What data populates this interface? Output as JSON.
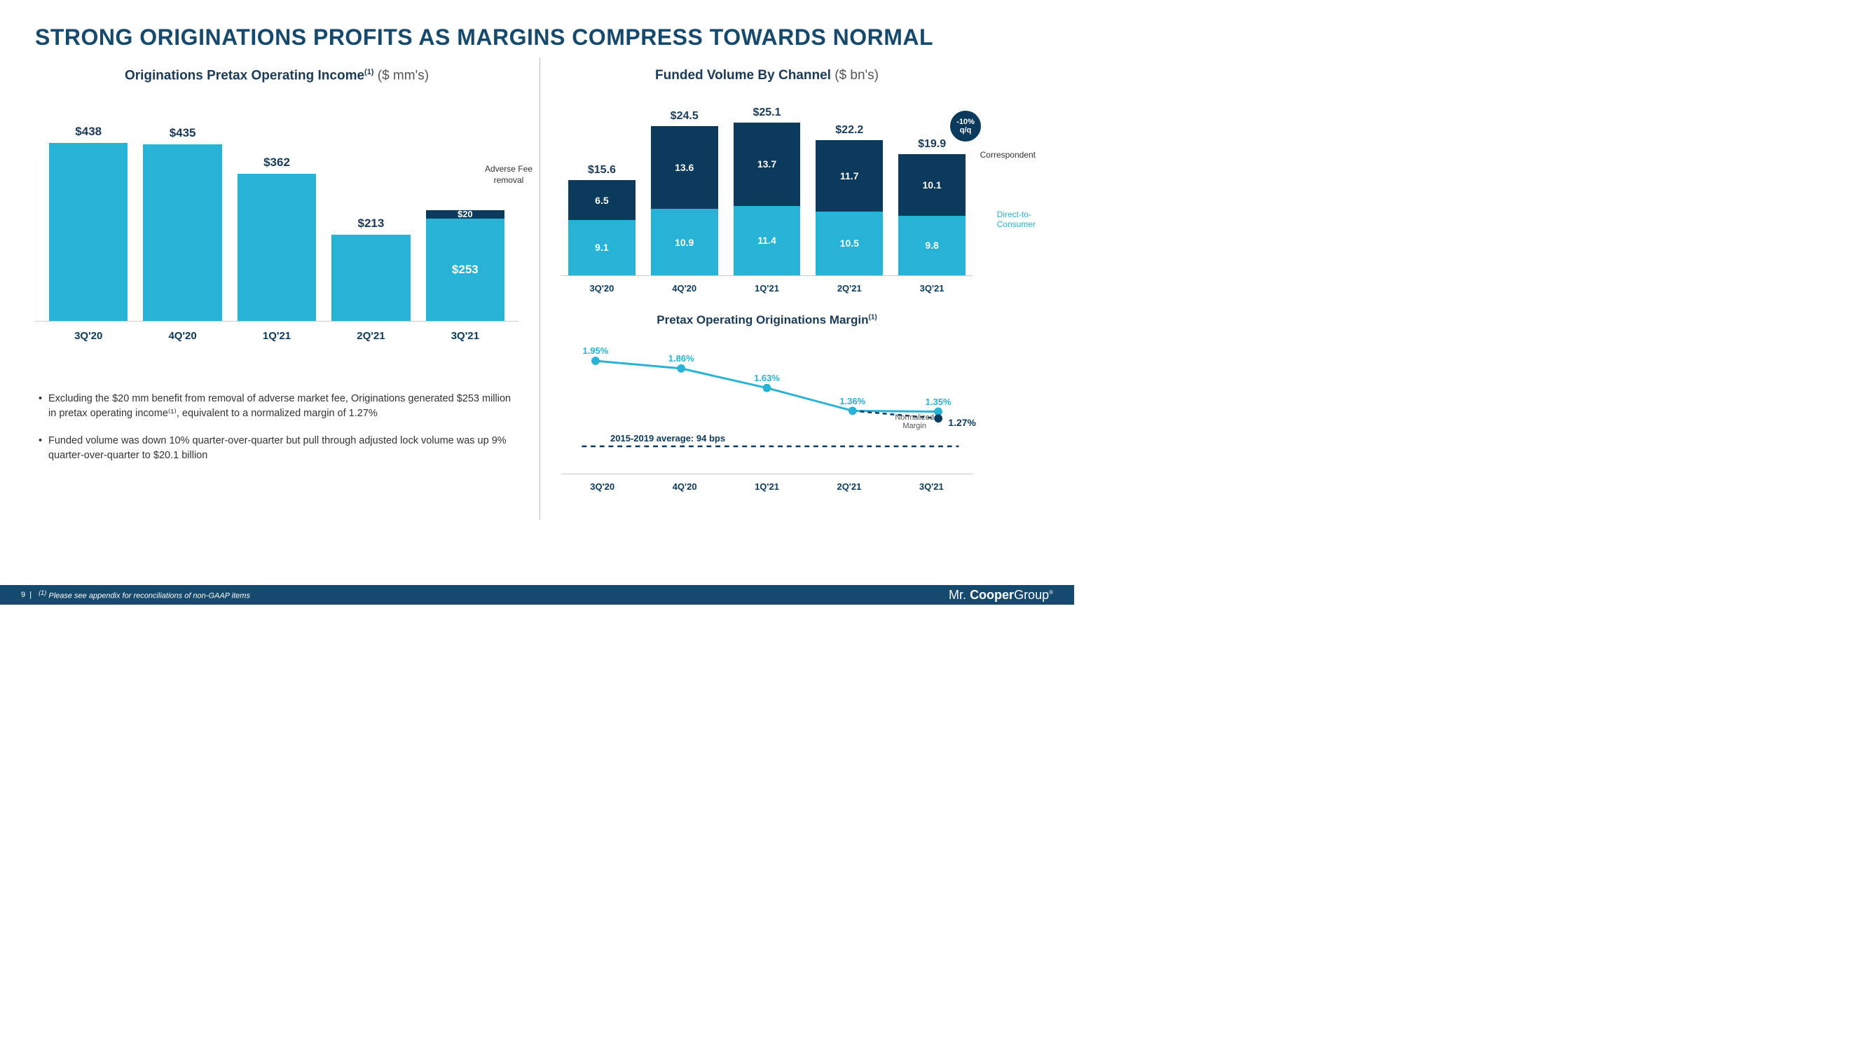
{
  "title": {
    "text": "STRONG ORIGINATIONS PROFITS AS MARGINS COMPRESS TOWARDS NORMAL",
    "color": "#16496e",
    "fontsize": 32
  },
  "periods": [
    "3Q'20",
    "4Q'20",
    "1Q'21",
    "2Q'21",
    "3Q'21"
  ],
  "chart1": {
    "title_main": "Originations Pretax Operating Income",
    "title_sup": "(1)",
    "title_unit": " ($ mm's)",
    "type": "bar",
    "max": 500,
    "bar_color": "#27b3d6",
    "categories": [
      "3Q'20",
      "4Q'20",
      "1Q'21",
      "2Q'21",
      "3Q'21"
    ],
    "values": [
      438,
      435,
      362,
      213,
      273
    ],
    "labels": [
      "$438",
      "$435",
      "$362",
      "$213",
      ""
    ],
    "last_top_seg": 20,
    "last_top_label": "$20",
    "last_bot_seg": 253,
    "last_bot_label": "$253",
    "adverse_line1": "Adverse Fee",
    "adverse_line2": "removal"
  },
  "bullets": [
    "Excluding the $20 mm benefit from removal of adverse market fee, Originations generated $253 million in pretax operating income⁽¹⁾, equivalent to a normalized margin of 1.27%",
    "Funded volume was down 10% quarter-over-quarter but pull through adjusted lock volume was up 9% quarter-over-quarter to $20.1 billion"
  ],
  "chart2": {
    "title_main": "Funded Volume By Channel",
    "title_unit": " ($ bn's)",
    "type": "stacked-bar",
    "max": 27,
    "categories": [
      "3Q'20",
      "4Q'20",
      "1Q'21",
      "2Q'21",
      "3Q'21"
    ],
    "totals": [
      "$15.6",
      "$24.5",
      "$25.1",
      "$22.2",
      "$19.9"
    ],
    "top_vals": [
      6.5,
      13.6,
      13.7,
      11.7,
      10.1
    ],
    "top_labels": [
      "6.5",
      "13.6",
      "13.7",
      "11.7",
      "10.1"
    ],
    "bot_vals": [
      9.1,
      10.9,
      11.4,
      10.5,
      9.8
    ],
    "bot_labels": [
      "9.1",
      "10.9",
      "11.4",
      "10.5",
      "9.8"
    ],
    "top_color": "#0b3a5c",
    "bot_color": "#27b3d6",
    "legend_top": "Correspondent",
    "legend_bot_l1": "Direct-to-",
    "legend_bot_l2": "Consumer",
    "qq_l1": "-10%",
    "qq_l2": "q/q"
  },
  "chart3": {
    "title_main": "Pretax Operating Originations Margin",
    "title_sup": "(1)",
    "type": "line",
    "categories": [
      "3Q'20",
      "4Q'20",
      "1Q'21",
      "2Q'21",
      "3Q'21"
    ],
    "values": [
      1.95,
      1.86,
      1.63,
      1.36,
      1.35
    ],
    "labels": [
      "1.95%",
      "1.86%",
      "1.63%",
      "1.36%",
      "1.35%"
    ],
    "line_color": "#27b3d6",
    "marker_color": "#27b3d6",
    "normalized_val": 1.27,
    "normalized_label": "1.27%",
    "normalized_text_l1": "Normalized",
    "normalized_text_l2": "Margin",
    "avg_label": "2015-2019 average:  94 bps",
    "avg_y": 0.94,
    "ymin": 0.7,
    "ymax": 2.1
  },
  "footer": {
    "page": "9",
    "sep": "|",
    "sup": "(1)",
    "note": " Please see appendix for reconciliations of non-GAAP items",
    "brand_pre": "Mr.",
    "brand_mid": "Cooper",
    "brand_suf": "Group",
    "background": "#16496e"
  }
}
